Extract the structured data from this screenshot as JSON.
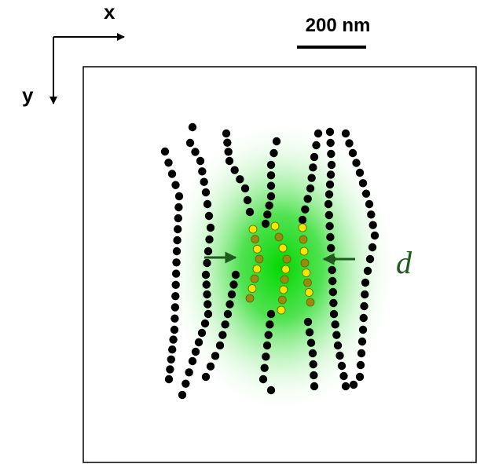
{
  "axes": {
    "x_label": "x",
    "y_label": "y"
  },
  "scale_bar": {
    "label": "200 nm"
  },
  "annotation": {
    "label": "d"
  }
}
